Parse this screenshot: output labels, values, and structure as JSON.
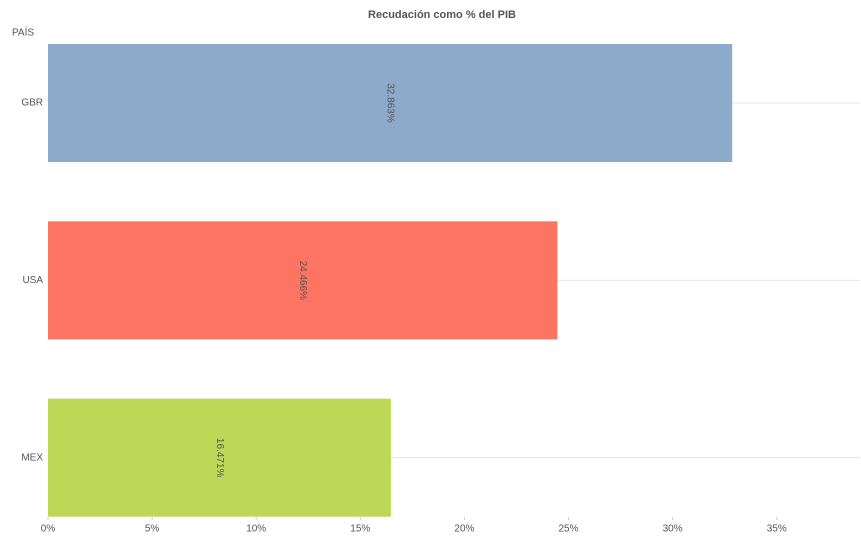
{
  "chart_data": {
    "type": "barh",
    "title": "Recudación como % del PIB",
    "y_label": "PAÍS",
    "categories": [
      "GBR",
      "USA",
      "MEX"
    ],
    "values": [
      32.863,
      24.466,
      16.471
    ],
    "value_labels": [
      "32.863%",
      "24.466%",
      "16.471%"
    ],
    "colors": [
      "#8eaacb",
      "#fe7462",
      "#bdd756"
    ],
    "xlim": [
      0,
      39
    ],
    "xticks": [
      {
        "value": 0,
        "label": "0%"
      },
      {
        "value": 5,
        "label": "5%"
      },
      {
        "value": 10,
        "label": "10%"
      },
      {
        "value": 15,
        "label": "15%"
      },
      {
        "value": 20,
        "label": "20%"
      },
      {
        "value": 25,
        "label": "25%"
      },
      {
        "value": 30,
        "label": "30%"
      },
      {
        "value": 35,
        "label": "35%"
      }
    ],
    "grid": true
  }
}
